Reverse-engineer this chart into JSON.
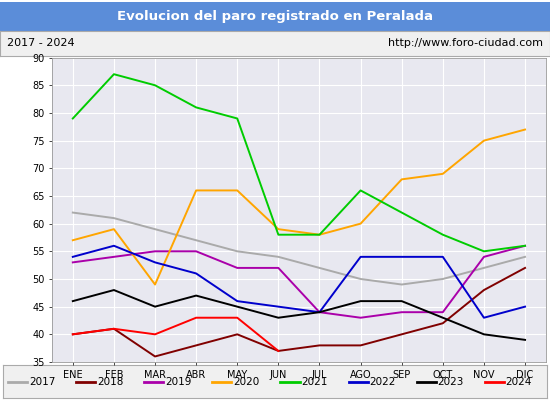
{
  "title": "Evolucion del paro registrado en Peralada",
  "subtitle_left": "2017 - 2024",
  "subtitle_right": "http://www.foro-ciudad.com",
  "x_labels": [
    "ENE",
    "FEB",
    "MAR",
    "ABR",
    "MAY",
    "JUN",
    "JUL",
    "AGO",
    "SEP",
    "OCT",
    "NOV",
    "DIC"
  ],
  "ylim": [
    35,
    90
  ],
  "yticks": [
    35,
    40,
    45,
    50,
    55,
    60,
    65,
    70,
    75,
    80,
    85,
    90
  ],
  "series": {
    "2017": {
      "color": "#aaaaaa",
      "data": [
        62,
        61,
        59,
        57,
        55,
        54,
        52,
        50,
        49,
        50,
        52,
        54
      ]
    },
    "2018": {
      "color": "#800000",
      "data": [
        40,
        41,
        36,
        38,
        40,
        37,
        38,
        38,
        40,
        42,
        48,
        52
      ]
    },
    "2019": {
      "color": "#aa00aa",
      "data": [
        53,
        54,
        55,
        55,
        52,
        52,
        44,
        43,
        44,
        44,
        54,
        56
      ]
    },
    "2020": {
      "color": "#ffa500",
      "data": [
        57,
        59,
        49,
        66,
        66,
        59,
        58,
        60,
        68,
        69,
        75,
        77
      ]
    },
    "2021": {
      "color": "#00cc00",
      "data": [
        79,
        87,
        85,
        81,
        79,
        58,
        58,
        66,
        62,
        58,
        55,
        56
      ]
    },
    "2022": {
      "color": "#0000cc",
      "data": [
        54,
        56,
        53,
        51,
        46,
        45,
        44,
        54,
        54,
        54,
        43,
        45
      ]
    },
    "2023": {
      "color": "#000000",
      "data": [
        46,
        48,
        45,
        47,
        45,
        43,
        44,
        46,
        46,
        43,
        40,
        39
      ]
    },
    "2024": {
      "color": "#ff0000",
      "data": [
        40,
        41,
        40,
        43,
        43,
        37,
        null,
        null,
        null,
        null,
        null,
        null
      ]
    }
  },
  "title_bg_color": "#5b8dd9",
  "title_text_color": "#ffffff",
  "subtitle_bg_color": "#f0f0f0",
  "plot_bg_color": "#e8e8f0",
  "grid_color": "#ffffff",
  "legend_bg_color": "#f0f0f0"
}
